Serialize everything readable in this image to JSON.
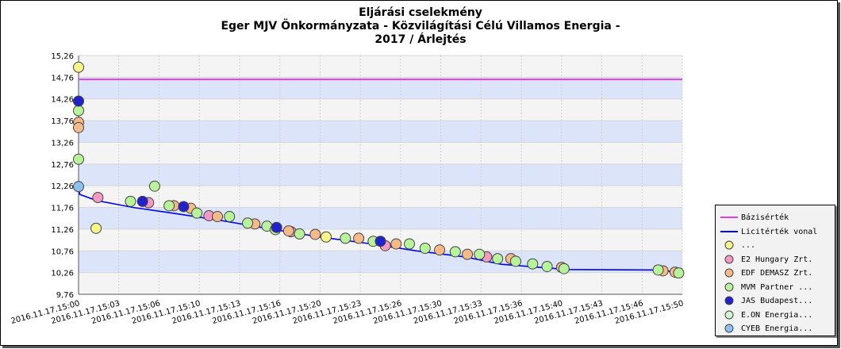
{
  "chart_data": {
    "type": "scatter",
    "title": [
      "Eljárási cselekmény",
      "Eger MJV Önkormányzata - Közvilágítási Célú Villamos Energia -",
      "2017 / Árlejtés"
    ],
    "ylim": [
      9.76,
      15.26
    ],
    "yticks": [
      "9,76",
      "10,26",
      "10,76",
      "11,26",
      "11,76",
      "12,26",
      "12,76",
      "13,26",
      "13,76",
      "14,26",
      "14,76",
      "15,26"
    ],
    "ytick_values": [
      9.76,
      10.26,
      10.76,
      11.26,
      11.76,
      12.26,
      12.76,
      13.26,
      13.76,
      14.26,
      14.76,
      15.26
    ],
    "xlim": [
      0,
      50
    ],
    "xticks": [
      "2016.11.17.15:00",
      "2016.11.17.15:03",
      "2016.11.17.15:06",
      "2016.11.17.15:10",
      "2016.11.17.15:13",
      "2016.11.17.15:16",
      "2016.11.17.15:20",
      "2016.11.17.15:23",
      "2016.11.17.15:26",
      "2016.11.17.15:30",
      "2016.11.17.15:33",
      "2016.11.17.15:36",
      "2016.11.17.15:40",
      "2016.11.17.15:43",
      "2016.11.17.15:46",
      "2016.11.17.15:50"
    ],
    "xtick_values": [
      0,
      3.33,
      6.67,
      10,
      13.33,
      16.67,
      20,
      23.33,
      26.67,
      30,
      33.33,
      36.67,
      40,
      43.33,
      46.67,
      50
    ],
    "grid": true,
    "legend_position": "bottom-right",
    "colors": {
      "bazisertek": "#e040e0",
      "licitertek": "#0000ee",
      "band": "#dce4fa",
      "plot_bg": "#f4f4f4",
      "frame_border": "#000000"
    },
    "bazisertek": 14.71,
    "licitertek": {
      "name": "Licitérték vonal",
      "x": [
        0,
        0.1,
        1.5,
        4.5,
        8,
        12,
        16,
        20,
        24,
        28,
        32,
        35,
        40.5,
        48.3,
        49.9
      ],
      "y": [
        12.22,
        12.06,
        11.92,
        11.76,
        11.62,
        11.45,
        11.26,
        11.08,
        10.93,
        10.76,
        10.62,
        10.45,
        10.33,
        10.32,
        10.25
      ]
    },
    "series": [
      {
        "name": "...",
        "color": "#f7f58a",
        "x": [
          0,
          1.45,
          20.5
        ],
        "y": [
          14.99,
          11.28,
          11.08
        ]
      },
      {
        "name": "E2 Hungary Zrt...",
        "color": "#f49ac2",
        "x": [
          1.6,
          5.8,
          10.8,
          17.6,
          25.4,
          33.8
        ],
        "y": [
          11.99,
          11.87,
          11.57,
          11.2,
          10.88,
          10.62
        ]
      },
      {
        "name": "EDF DEMASZ Zrt...",
        "color": "#f5b98a",
        "x": [
          0,
          0,
          7.9,
          9.3,
          11.5,
          14.6,
          17.4,
          19.6,
          23.2,
          26.3,
          29.9,
          32.2,
          35.8,
          40.0,
          48.4,
          49.4
        ],
        "y": [
          13.72,
          13.6,
          11.8,
          11.74,
          11.55,
          11.38,
          11.22,
          11.14,
          11.05,
          10.92,
          10.78,
          10.68,
          10.58,
          10.38,
          10.3,
          10.27
        ]
      },
      {
        "name": "MVM Partner ...",
        "color": "#b8f29a",
        "x": [
          0,
          0,
          4.3,
          6.3,
          7.5,
          9.8,
          12.5,
          14.0,
          15.6,
          16.3,
          18.3,
          22.1,
          24.4,
          27.4,
          28.7,
          31.2,
          33.2,
          34.7,
          36.2,
          37.6,
          38.8,
          40.2,
          48.0,
          49.7
        ],
        "y": [
          13.99,
          12.87,
          11.9,
          12.25,
          11.8,
          11.63,
          11.55,
          11.4,
          11.33,
          11.25,
          11.15,
          11.05,
          10.98,
          10.92,
          10.82,
          10.74,
          10.68,
          10.58,
          10.52,
          10.46,
          10.4,
          10.35,
          10.32,
          10.25
        ]
      },
      {
        "name": "JAS Budapest...",
        "color": "#2222cc",
        "x": [
          0,
          5.3,
          8.7,
          16.4,
          25.0
        ],
        "y": [
          14.21,
          11.9,
          11.78,
          11.3,
          10.98
        ]
      },
      {
        "name": "E.ON Energia...",
        "color": "#d2f5d2",
        "x": [],
        "y": []
      },
      {
        "name": "CYEB Energia...",
        "color": "#8ec0f0",
        "x": [
          0
        ],
        "y": [
          12.24
        ]
      }
    ]
  },
  "legend": {
    "items": [
      {
        "label": "Bázisérték",
        "kind": "line",
        "color": "#e040e0"
      },
      {
        "label": "Licitérték vonal",
        "kind": "line",
        "color": "#0000ee"
      },
      {
        "label": "...",
        "kind": "dot",
        "color": "#f7f58a"
      },
      {
        "label": "E2 Hungary Zrt.",
        "kind": "dot",
        "color": "#f49ac2"
      },
      {
        "label": "EDF DEMASZ Zrt.",
        "kind": "dot",
        "color": "#f5b98a"
      },
      {
        "label": "MVM Partner ...",
        "kind": "dot",
        "color": "#b8f29a"
      },
      {
        "label": "JAS Budapest...",
        "kind": "dot",
        "color": "#2222cc"
      },
      {
        "label": "E.ON Energia...",
        "kind": "dot",
        "color": "#d2f5d2"
      },
      {
        "label": "CYEB Energia...",
        "kind": "dot",
        "color": "#8ec0f0"
      }
    ]
  }
}
